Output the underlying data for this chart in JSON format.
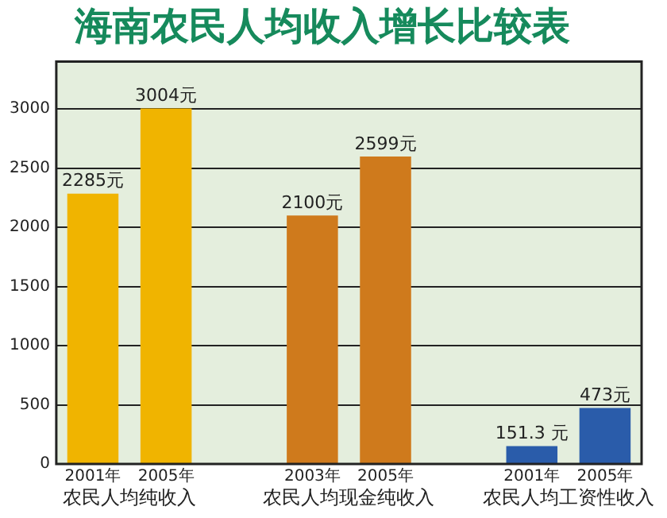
{
  "chart_data": {
    "type": "bar",
    "title": "海南农民人均收入增长比较表",
    "categories": [
      "2001年",
      "2005年",
      null,
      "2003年",
      "2005年",
      null,
      "2001年",
      "2005年"
    ],
    "series": [
      {
        "colors": [
          "#f0b400",
          "#f0b400",
          null,
          "#cf7a1c",
          "#cf7a1c",
          null,
          "#2a5caa",
          "#2a5caa"
        ],
        "values": [
          2285,
          3004,
          null,
          2100,
          2599,
          null,
          151.3,
          473
        ],
        "value_labels": [
          "2285元",
          "3004元",
          null,
          "2100元",
          "2599元",
          null,
          "151.3 元",
          "473元"
        ]
      }
    ],
    "ylim": [
      0,
      3400
    ],
    "yticks": [
      0,
      500,
      1000,
      1500,
      2000,
      2500,
      3000
    ],
    "grid": "y",
    "legend": false,
    "annotations": [
      "农民人均纯收入",
      "农民人均现金纯收入",
      "农民人均工资性收入"
    ]
  }
}
